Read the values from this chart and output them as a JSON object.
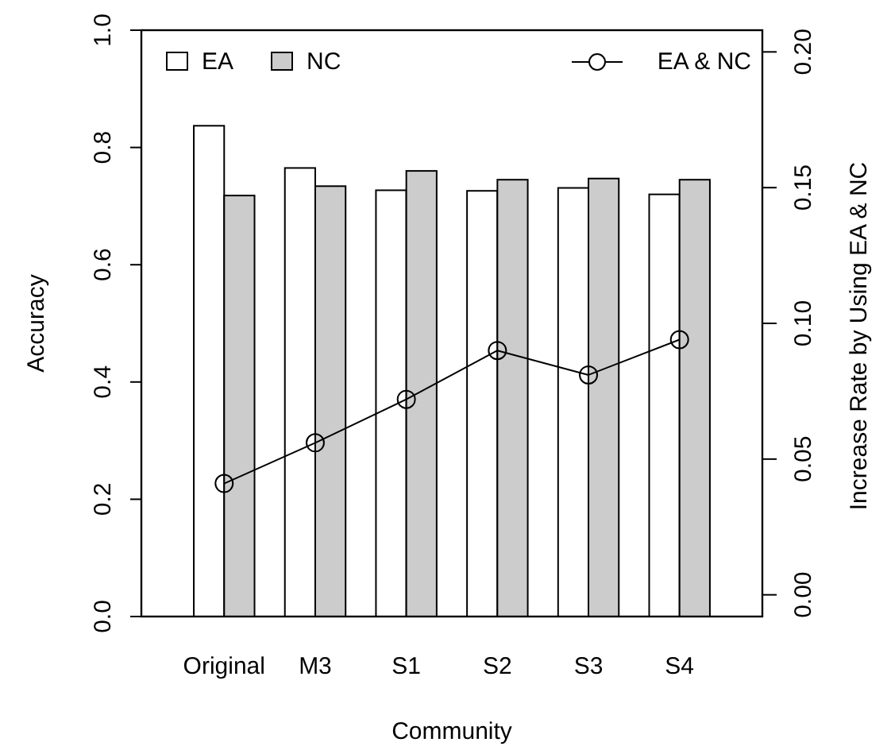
{
  "chart_data": {
    "type": "bar",
    "xlabel": "Community",
    "ylabel": "Accuracy",
    "y2label": "Increase Rate by Using EA & NC",
    "categories": [
      "Original",
      "M3",
      "S1",
      "S2",
      "S3",
      "S4"
    ],
    "series": [
      {
        "name": "EA",
        "color": "#ffffff",
        "values": [
          0.837,
          0.765,
          0.727,
          0.726,
          0.731,
          0.72
        ]
      },
      {
        "name": "NC",
        "color": "#cccccc",
        "values": [
          0.718,
          0.734,
          0.76,
          0.745,
          0.747,
          0.745
        ]
      },
      {
        "name": "EA & NC",
        "type": "line",
        "axis": "y2",
        "color": "#000000",
        "marker": "circle",
        "values": [
          0.041,
          0.056,
          0.072,
          0.09,
          0.081,
          0.094
        ]
      }
    ],
    "ylim": [
      0,
      1
    ],
    "yticks": [
      {
        "value": 0,
        "label": "0.0"
      },
      0.2,
      0.4,
      0.6,
      0.8,
      {
        "value": 1,
        "label": "1.0"
      }
    ],
    "y2lim": [
      -0.008,
      0.208
    ],
    "y2ticks": [
      {
        "value": 0,
        "label": "0.00"
      },
      0.05,
      {
        "value": 0.1,
        "label": "0.10"
      },
      0.15,
      {
        "value": 0.2,
        "label": "0.20"
      }
    ],
    "grid": false,
    "legend": "top"
  }
}
